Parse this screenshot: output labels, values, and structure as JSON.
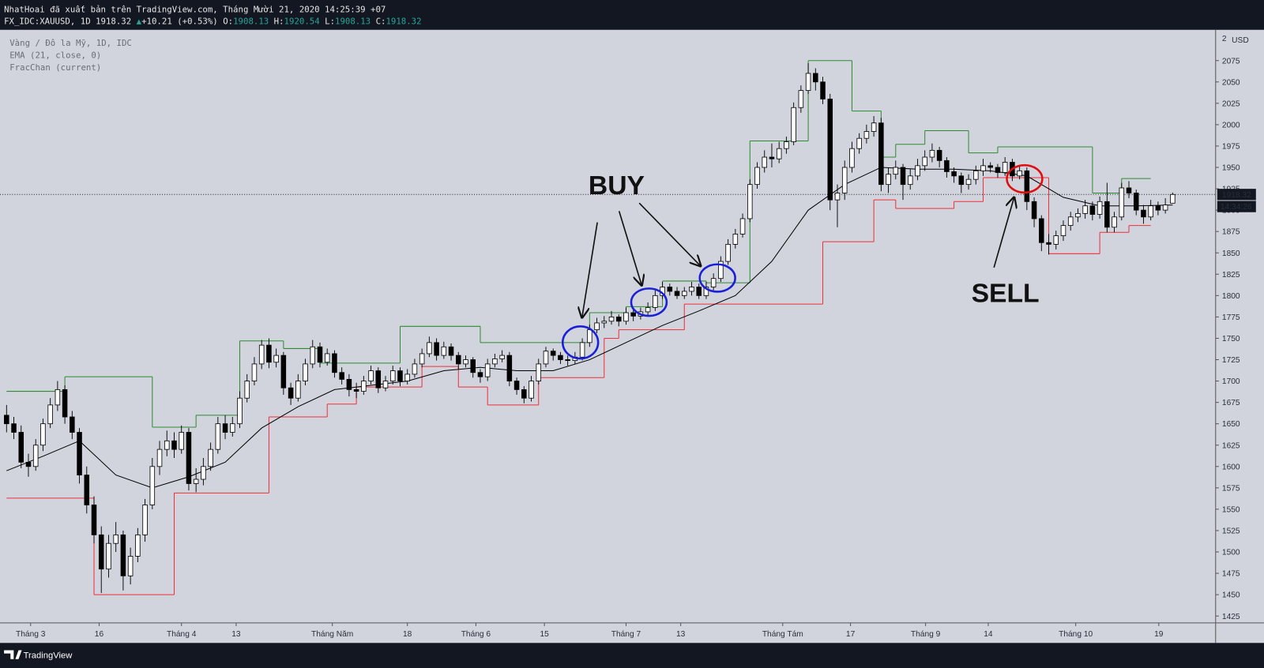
{
  "header": {
    "attribution": "NhatHoai đã xuất bản trên TradingView.com, Tháng Mười 21, 2020 14:25:39 +07",
    "symbol": "FX_IDC:XAUUSD, 1D",
    "last": "1918.32",
    "arrow": "▲",
    "change": "+10.21 (+0.53%)",
    "quote": [
      {
        "k": "O:",
        "v": "1908.13"
      },
      {
        "k": "H:",
        "v": "1920.54"
      },
      {
        "k": "L:",
        "v": "1908.13"
      },
      {
        "k": "C:",
        "v": "1918.32"
      }
    ]
  },
  "footer": {
    "brand": "TradingView"
  },
  "chart_data": {
    "type": "candlestick",
    "title": "Vàng / Đô la Mỹ, 1D, IDC",
    "currency": "USD",
    "axis_fragment": "2",
    "xlim": [
      -0.9,
      165.9
    ],
    "ylim": [
      1417,
      2111
    ],
    "yticks": [
      1425,
      1450,
      1475,
      1500,
      1525,
      1550,
      1575,
      1600,
      1625,
      1650,
      1675,
      1700,
      1725,
      1750,
      1775,
      1800,
      1825,
      1850,
      1875,
      1900,
      1925,
      1950,
      1975,
      2000,
      2025,
      2050,
      2075
    ],
    "xticks": [
      {
        "value": 3.3,
        "label": "Tháng 3"
      },
      {
        "value": 12.7,
        "label": "16"
      },
      {
        "value": 24,
        "label": "Tháng 4"
      },
      {
        "value": 31.5,
        "label": "13"
      },
      {
        "value": 44.7,
        "label": "Tháng Năm"
      },
      {
        "value": 55,
        "label": "18"
      },
      {
        "value": 64.4,
        "label": "Tháng 6"
      },
      {
        "value": 73.8,
        "label": "15"
      },
      {
        "value": 85,
        "label": "Tháng 7"
      },
      {
        "value": 92.5,
        "label": "13"
      },
      {
        "value": 106.5,
        "label": "Tháng Tám"
      },
      {
        "value": 115.8,
        "label": "17"
      },
      {
        "value": 126.1,
        "label": "Tháng 9"
      },
      {
        "value": 134.7,
        "label": "14"
      },
      {
        "value": 146.7,
        "label": "Tháng 10"
      },
      {
        "value": 158.1,
        "label": "19"
      }
    ],
    "grid": false,
    "up_color": "#ffffff",
    "down_color": "#000000",
    "last_price": {
      "value": 1918.32,
      "label": "1918.32"
    },
    "countdown": "14:34:26",
    "ohlc": [
      [
        1660,
        1672,
        1640,
        1650
      ],
      [
        1650,
        1658,
        1632,
        1640
      ],
      [
        1640,
        1648,
        1598,
        1605
      ],
      [
        1605,
        1615,
        1588,
        1600
      ],
      [
        1600,
        1632,
        1595,
        1625
      ],
      [
        1625,
        1656,
        1618,
        1650
      ],
      [
        1650,
        1680,
        1645,
        1672
      ],
      [
        1672,
        1700,
        1665,
        1690
      ],
      [
        1690,
        1695,
        1650,
        1658
      ],
      [
        1658,
        1665,
        1632,
        1640
      ],
      [
        1640,
        1645,
        1580,
        1590
      ],
      [
        1590,
        1600,
        1545,
        1555
      ],
      [
        1555,
        1565,
        1510,
        1520
      ],
      [
        1520,
        1530,
        1452,
        1480
      ],
      [
        1480,
        1520,
        1470,
        1510
      ],
      [
        1510,
        1535,
        1500,
        1520
      ],
      [
        1520,
        1525,
        1455,
        1472
      ],
      [
        1472,
        1505,
        1462,
        1495
      ],
      [
        1495,
        1528,
        1488,
        1520
      ],
      [
        1520,
        1562,
        1512,
        1555
      ],
      [
        1555,
        1610,
        1550,
        1600
      ],
      [
        1600,
        1630,
        1590,
        1620
      ],
      [
        1620,
        1642,
        1612,
        1630
      ],
      [
        1630,
        1640,
        1610,
        1620
      ],
      [
        1620,
        1648,
        1615,
        1640
      ],
      [
        1640,
        1645,
        1572,
        1580
      ],
      [
        1580,
        1598,
        1570,
        1585
      ],
      [
        1585,
        1610,
        1578,
        1600
      ],
      [
        1600,
        1628,
        1595,
        1620
      ],
      [
        1620,
        1658,
        1615,
        1650
      ],
      [
        1650,
        1660,
        1632,
        1640
      ],
      [
        1640,
        1658,
        1635,
        1650
      ],
      [
        1650,
        1688,
        1645,
        1680
      ],
      [
        1680,
        1708,
        1675,
        1700
      ],
      [
        1700,
        1728,
        1695,
        1720
      ],
      [
        1720,
        1748,
        1714,
        1742
      ],
      [
        1742,
        1750,
        1715,
        1722
      ],
      [
        1722,
        1738,
        1716,
        1730
      ],
      [
        1730,
        1734,
        1684,
        1692
      ],
      [
        1692,
        1698,
        1672,
        1680
      ],
      [
        1680,
        1708,
        1676,
        1700
      ],
      [
        1700,
        1726,
        1695,
        1720
      ],
      [
        1720,
        1748,
        1715,
        1740
      ],
      [
        1740,
        1745,
        1716,
        1722
      ],
      [
        1722,
        1738,
        1718,
        1732
      ],
      [
        1732,
        1736,
        1704,
        1710
      ],
      [
        1710,
        1716,
        1696,
        1702
      ],
      [
        1702,
        1708,
        1682,
        1690
      ],
      [
        1690,
        1698,
        1680,
        1688
      ],
      [
        1688,
        1706,
        1684,
        1700
      ],
      [
        1700,
        1718,
        1696,
        1712
      ],
      [
        1712,
        1716,
        1686,
        1692
      ],
      [
        1692,
        1706,
        1688,
        1700
      ],
      [
        1700,
        1718,
        1696,
        1712
      ],
      [
        1712,
        1716,
        1694,
        1700
      ],
      [
        1700,
        1714,
        1696,
        1708
      ],
      [
        1708,
        1726,
        1704,
        1720
      ],
      [
        1720,
        1738,
        1716,
        1732
      ],
      [
        1732,
        1752,
        1728,
        1745
      ],
      [
        1745,
        1750,
        1724,
        1730
      ],
      [
        1730,
        1746,
        1726,
        1740
      ],
      [
        1740,
        1744,
        1724,
        1730
      ],
      [
        1730,
        1734,
        1714,
        1720
      ],
      [
        1720,
        1730,
        1716,
        1725
      ],
      [
        1725,
        1728,
        1704,
        1710
      ],
      [
        1710,
        1714,
        1698,
        1705
      ],
      [
        1705,
        1726,
        1700,
        1720
      ],
      [
        1720,
        1732,
        1716,
        1726
      ],
      [
        1726,
        1736,
        1722,
        1730
      ],
      [
        1730,
        1734,
        1694,
        1700
      ],
      [
        1700,
        1704,
        1684,
        1690
      ],
      [
        1690,
        1694,
        1674,
        1680
      ],
      [
        1680,
        1706,
        1676,
        1700
      ],
      [
        1700,
        1726,
        1696,
        1720
      ],
      [
        1720,
        1740,
        1716,
        1735
      ],
      [
        1735,
        1738,
        1724,
        1730
      ],
      [
        1730,
        1734,
        1720,
        1725
      ],
      [
        1725,
        1730,
        1718,
        1724
      ],
      [
        1724,
        1734,
        1720,
        1728
      ],
      [
        1728,
        1750,
        1724,
        1745
      ],
      [
        1745,
        1766,
        1740,
        1760
      ],
      [
        1760,
        1774,
        1756,
        1768
      ],
      [
        1768,
        1776,
        1762,
        1770
      ],
      [
        1770,
        1782,
        1766,
        1775
      ],
      [
        1775,
        1778,
        1764,
        1770
      ],
      [
        1770,
        1786,
        1766,
        1780
      ],
      [
        1780,
        1784,
        1770,
        1776
      ],
      [
        1776,
        1786,
        1772,
        1781
      ],
      [
        1781,
        1792,
        1776,
        1786
      ],
      [
        1786,
        1806,
        1782,
        1800
      ],
      [
        1800,
        1816,
        1796,
        1810
      ],
      [
        1810,
        1814,
        1800,
        1805
      ],
      [
        1805,
        1810,
        1796,
        1800
      ],
      [
        1800,
        1810,
        1796,
        1805
      ],
      [
        1805,
        1816,
        1800,
        1810
      ],
      [
        1810,
        1814,
        1796,
        1800
      ],
      [
        1800,
        1816,
        1796,
        1810
      ],
      [
        1810,
        1826,
        1806,
        1820
      ],
      [
        1820,
        1846,
        1816,
        1840
      ],
      [
        1840,
        1866,
        1836,
        1860
      ],
      [
        1860,
        1878,
        1855,
        1872
      ],
      [
        1872,
        1896,
        1868,
        1890
      ],
      [
        1890,
        1936,
        1886,
        1930
      ],
      [
        1930,
        1956,
        1925,
        1950
      ],
      [
        1950,
        1970,
        1944,
        1962
      ],
      [
        1962,
        1978,
        1950,
        1960
      ],
      [
        1960,
        1980,
        1955,
        1972
      ],
      [
        1972,
        1986,
        1966,
        1980
      ],
      [
        1980,
        2026,
        1976,
        2020
      ],
      [
        2020,
        2046,
        2014,
        2040
      ],
      [
        2040,
        2072,
        2036,
        2060
      ],
      [
        2060,
        2066,
        2040,
        2050
      ],
      [
        2050,
        2056,
        2024,
        2030
      ],
      [
        2030,
        2036,
        1900,
        1912
      ],
      [
        1912,
        1930,
        1880,
        1920
      ],
      [
        1920,
        1958,
        1912,
        1950
      ],
      [
        1950,
        1980,
        1944,
        1972
      ],
      [
        1972,
        1990,
        1966,
        1984
      ],
      [
        1984,
        2000,
        1978,
        1992
      ],
      [
        1992,
        2010,
        1986,
        2002
      ],
      [
        2002,
        2008,
        1922,
        1930
      ],
      [
        1930,
        1950,
        1920,
        1942
      ],
      [
        1942,
        1958,
        1936,
        1950
      ],
      [
        1950,
        1954,
        1912,
        1930
      ],
      [
        1930,
        1948,
        1924,
        1940
      ],
      [
        1940,
        1960,
        1935,
        1952
      ],
      [
        1952,
        1970,
        1946,
        1962
      ],
      [
        1962,
        1978,
        1956,
        1970
      ],
      [
        1970,
        1974,
        1950,
        1958
      ],
      [
        1958,
        1962,
        1938,
        1945
      ],
      [
        1945,
        1950,
        1932,
        1940
      ],
      [
        1940,
        1944,
        1920,
        1930
      ],
      [
        1930,
        1942,
        1924,
        1936
      ],
      [
        1936,
        1952,
        1930,
        1946
      ],
      [
        1946,
        1960,
        1940,
        1952
      ],
      [
        1952,
        1956,
        1944,
        1950
      ],
      [
        1950,
        1954,
        1938,
        1944
      ],
      [
        1944,
        1962,
        1940,
        1956
      ],
      [
        1956,
        1960,
        1934,
        1940
      ],
      [
        1940,
        1952,
        1936,
        1946
      ],
      [
        1946,
        1950,
        1900,
        1910
      ],
      [
        1910,
        1915,
        1880,
        1890
      ],
      [
        1890,
        1894,
        1852,
        1862
      ],
      [
        1862,
        1872,
        1848,
        1860
      ],
      [
        1860,
        1876,
        1854,
        1870
      ],
      [
        1870,
        1888,
        1864,
        1882
      ],
      [
        1882,
        1898,
        1876,
        1892
      ],
      [
        1892,
        1902,
        1886,
        1896
      ],
      [
        1896,
        1912,
        1890,
        1905
      ],
      [
        1905,
        1910,
        1888,
        1895
      ],
      [
        1895,
        1916,
        1890,
        1910
      ],
      [
        1910,
        1932,
        1874,
        1880
      ],
      [
        1880,
        1898,
        1874,
        1892
      ],
      [
        1892,
        1932,
        1888,
        1926
      ],
      [
        1926,
        1934,
        1914,
        1920
      ],
      [
        1920,
        1924,
        1894,
        1900
      ],
      [
        1900,
        1906,
        1884,
        1892
      ],
      [
        1892,
        1912,
        1888,
        1905
      ],
      [
        1905,
        1910,
        1894,
        1900
      ],
      [
        1900,
        1914,
        1896,
        1906
      ],
      [
        1908.13,
        1920.54,
        1908.13,
        1918.32
      ]
    ],
    "ema": {
      "name": "EMA (21, close, 0)",
      "color": "#000000",
      "x": [
        0,
        5,
        10,
        15,
        20,
        25,
        30,
        35,
        40,
        45,
        50,
        55,
        60,
        65,
        70,
        75,
        80,
        85,
        90,
        95,
        100,
        105,
        110,
        115,
        120,
        125,
        130,
        135,
        140,
        145,
        150,
        155,
        160
      ],
      "values": [
        1595,
        1612,
        1630,
        1590,
        1575,
        1588,
        1605,
        1645,
        1670,
        1690,
        1695,
        1700,
        1712,
        1716,
        1712,
        1712,
        1725,
        1745,
        1765,
        1782,
        1800,
        1840,
        1900,
        1930,
        1950,
        1948,
        1948,
        1946,
        1940,
        1915,
        1905,
        1905,
        1906
      ]
    },
    "channel": {
      "name": "FracChan (current)",
      "upper_color": "#2e8b32",
      "lower_color": "#f0303a",
      "upper": [
        [
          0,
          8,
          1688
        ],
        [
          8,
          20,
          1705
        ],
        [
          20,
          26,
          1646
        ],
        [
          26,
          32,
          1660
        ],
        [
          32,
          38,
          1747
        ],
        [
          38,
          43,
          1738
        ],
        [
          43,
          54,
          1721
        ],
        [
          54,
          65,
          1764
        ],
        [
          65,
          80,
          1745
        ],
        [
          80,
          85,
          1780
        ],
        [
          85,
          90,
          1787
        ],
        [
          90,
          96,
          1817
        ],
        [
          96,
          102,
          1815
        ],
        [
          102,
          110,
          1981
        ],
        [
          110,
          116,
          2075
        ],
        [
          116,
          120,
          2016
        ],
        [
          120,
          122,
          1962
        ],
        [
          122,
          126,
          1977
        ],
        [
          126,
          132,
          1993
        ],
        [
          132,
          136,
          1967
        ],
        [
          136,
          149,
          1974
        ],
        [
          149,
          153,
          1920
        ],
        [
          153,
          157,
          1937
        ]
      ],
      "lower": [
        [
          0,
          12,
          1563
        ],
        [
          12,
          23,
          1450
        ],
        [
          23,
          36,
          1569
        ],
        [
          36,
          44,
          1658
        ],
        [
          44,
          48,
          1673
        ],
        [
          48,
          57,
          1693
        ],
        [
          57,
          62,
          1717
        ],
        [
          62,
          66,
          1693
        ],
        [
          66,
          73,
          1672
        ],
        [
          73,
          82,
          1704
        ],
        [
          82,
          84,
          1750
        ],
        [
          84,
          93,
          1760
        ],
        [
          93,
          112,
          1790
        ],
        [
          112,
          119,
          1863
        ],
        [
          119,
          122,
          1912
        ],
        [
          122,
          130,
          1902
        ],
        [
          130,
          134,
          1910
        ],
        [
          134,
          143,
          1938
        ],
        [
          143,
          150,
          1849
        ],
        [
          150,
          154,
          1874
        ],
        [
          154,
          157,
          1882
        ]
      ]
    },
    "annotations": {
      "buy": "BUY",
      "sell": "SELL"
    }
  }
}
